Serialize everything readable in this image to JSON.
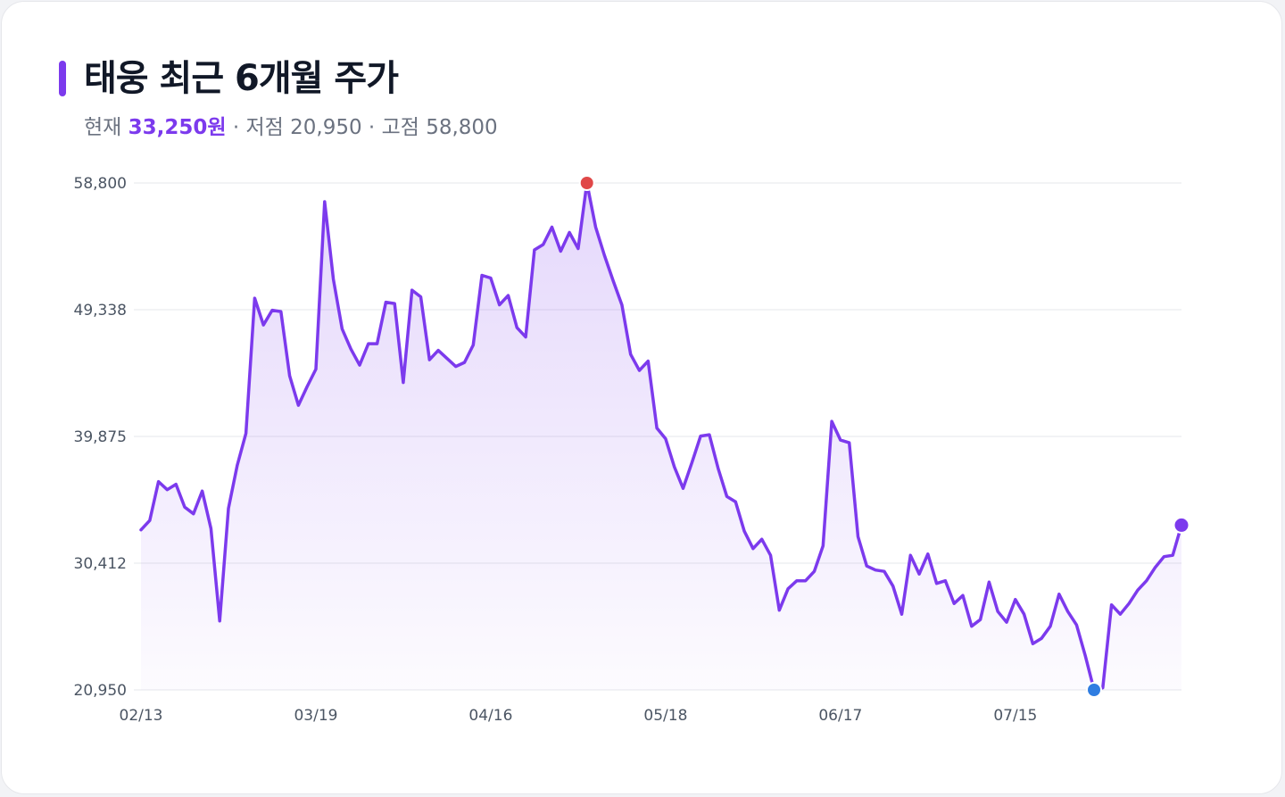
{
  "header": {
    "title": "태웅 최근 6개월 주가",
    "current_label": "현재",
    "current_value": "33,250원",
    "sep1": " · ",
    "low_label": "저점",
    "low_value": "20,950",
    "sep2": " · ",
    "high_label": "고점",
    "high_value": "58,800"
  },
  "colors": {
    "accent": "#7c3aed",
    "high_marker": "#e04848",
    "low_marker": "#2f7de1",
    "grid": "#e5e7eb"
  },
  "chart_data": {
    "type": "area",
    "title": "태웅 최근 6개월 주가",
    "xlabel": "",
    "ylabel": "",
    "ylim": [
      20950,
      58800
    ],
    "yticks": [
      20950,
      30412,
      39875,
      49338,
      58800
    ],
    "ytick_labels": [
      "20,950",
      "30,412",
      "39,875",
      "49,338",
      "58,800"
    ],
    "xtick_labels": [
      "02/13",
      "03/19",
      "04/16",
      "05/18",
      "06/17",
      "07/15"
    ],
    "xtick_indices": [
      0,
      20,
      40,
      60,
      80,
      100
    ],
    "grid": true,
    "legend": "none",
    "markers": {
      "high_index": 51,
      "low_index": 109,
      "last_index": 119
    },
    "series": [
      {
        "values": [
          32900,
          33600,
          36500,
          35900,
          36300,
          34600,
          34100,
          35800,
          33000,
          26100,
          34500,
          37700,
          40100,
          50200,
          48200,
          49300,
          49200,
          44400,
          42200,
          43600,
          44900,
          57400,
          51600,
          47900,
          46400,
          45200,
          46800,
          46800,
          49900,
          49800,
          43900,
          50800,
          50300,
          45600,
          46300,
          45700,
          45100,
          45400,
          46700,
          51900,
          51700,
          49700,
          50400,
          48000,
          47300,
          53800,
          54200,
          55500,
          53700,
          55100,
          53900,
          58800,
          55500,
          53400,
          51500,
          49700,
          46000,
          44800,
          45500,
          40500,
          39700,
          37600,
          36000,
          37900,
          39900,
          40000,
          37500,
          35400,
          35000,
          32800,
          31500,
          32200,
          31000,
          26900,
          28500,
          29100,
          29100,
          29800,
          31700,
          41000,
          39600,
          39400,
          32400,
          30200,
          29900,
          29800,
          28700,
          26600,
          31000,
          29600,
          31100,
          28900,
          29100,
          27400,
          28000,
          25700,
          26200,
          29000,
          26800,
          26000,
          27700,
          26600,
          24400,
          24800,
          25700,
          28100,
          26800,
          25800,
          23500,
          20950,
          21100,
          27300,
          26600,
          27400,
          28400,
          29100,
          30100,
          30900,
          31000,
          33250
        ]
      }
    ]
  }
}
